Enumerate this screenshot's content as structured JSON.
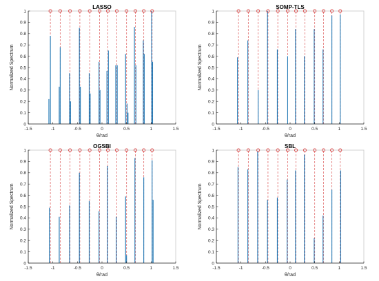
{
  "colors": {
    "spike": "#1f77b4",
    "true_line": "#e06b6b",
    "marker": "#d94040",
    "axis": "#262626",
    "frame": "#c8c8c8"
  },
  "chart_data": [
    {
      "type": "bar",
      "title": "LASSO",
      "xlabel": "θ/rad",
      "ylabel": "Normalized Spectrum",
      "xlim": [
        -1.5,
        1.5
      ],
      "ylim": [
        0,
        1
      ],
      "xticks": [
        -1.5,
        -1,
        -0.5,
        0,
        0.5,
        1,
        1.5
      ],
      "yticks": [
        0,
        0.1,
        0.2,
        0.3,
        0.4,
        0.5,
        0.6,
        0.7,
        0.8,
        0.9,
        1
      ],
      "true_doa": [
        -1.05,
        -0.85,
        -0.65,
        -0.45,
        -0.25,
        -0.05,
        0.12,
        0.3,
        0.5,
        0.68,
        0.85,
        1.02
      ],
      "spikes": {
        "x": [
          -1.08,
          -1.05,
          -0.87,
          -0.85,
          -0.66,
          -0.64,
          -0.46,
          -0.44,
          -0.26,
          -0.24,
          -0.06,
          -0.04,
          0.1,
          0.13,
          0.28,
          0.31,
          0.48,
          0.51,
          0.53,
          0.66,
          0.69,
          0.84,
          0.86,
          1.01,
          1.03
        ],
        "y": [
          0.22,
          0.78,
          0.33,
          0.68,
          0.45,
          0.2,
          0.85,
          0.33,
          0.45,
          0.27,
          0.55,
          0.3,
          0.47,
          0.65,
          0.52,
          0.52,
          0.62,
          0.18,
          0.1,
          0.86,
          0.52,
          0.74,
          0.62,
          1.0,
          0.55
        ]
      }
    },
    {
      "type": "bar",
      "title": "SOMP-TLS",
      "xlabel": "θ/rad",
      "ylabel": "Normalized Spectrum",
      "xlim": [
        -1.5,
        1.5
      ],
      "ylim": [
        0,
        1
      ],
      "xticks": [
        -1.5,
        -1,
        -0.5,
        0,
        0.5,
        1,
        1.5
      ],
      "yticks": [
        0,
        0.1,
        0.2,
        0.3,
        0.4,
        0.5,
        0.6,
        0.7,
        0.8,
        0.9,
        1
      ],
      "true_doa": [
        -1.05,
        -0.85,
        -0.65,
        -0.45,
        -0.25,
        -0.05,
        0.12,
        0.3,
        0.5,
        0.68,
        0.85,
        1.02
      ],
      "spikes": {
        "x": [
          -1.07,
          -0.86,
          -0.65,
          -0.46,
          -0.26,
          -0.05,
          0.11,
          0.29,
          0.49,
          0.67,
          0.85,
          1.02
        ],
        "y": [
          0.59,
          0.74,
          0.3,
          1.0,
          0.66,
          0.6,
          0.84,
          0.6,
          0.84,
          0.66,
          0.96,
          0.97
        ]
      }
    },
    {
      "type": "bar",
      "title": "OGSBI",
      "xlabel": "θ/rad",
      "ylabel": "Normalized Spectrum",
      "xlim": [
        -1.5,
        1.5
      ],
      "ylim": [
        0,
        1
      ],
      "xticks": [
        -1.5,
        -1,
        -0.5,
        0,
        0.5,
        1,
        1.5
      ],
      "yticks": [
        0,
        0.1,
        0.2,
        0.3,
        0.4,
        0.5,
        0.6,
        0.7,
        0.8,
        0.9,
        1
      ],
      "true_doa": [
        -1.05,
        -0.85,
        -0.65,
        -0.45,
        -0.25,
        -0.05,
        0.12,
        0.3,
        0.5,
        0.68,
        0.85,
        1.02
      ],
      "spikes": {
        "x": [
          -1.07,
          -0.87,
          -0.66,
          -0.46,
          -0.26,
          -0.06,
          0.11,
          0.29,
          0.48,
          0.5,
          0.67,
          0.85,
          1.02,
          1.04
        ],
        "y": [
          0.49,
          0.41,
          0.51,
          0.8,
          0.55,
          0.46,
          0.86,
          0.41,
          0.59,
          0.07,
          0.93,
          0.76,
          0.91,
          0.56
        ]
      }
    },
    {
      "type": "bar",
      "title": "SBL",
      "xlabel": "θ/rad",
      "ylabel": "Normalized Spectrum",
      "xlim": [
        -1.5,
        1.5
      ],
      "ylim": [
        0,
        1
      ],
      "xticks": [
        -1.5,
        -1,
        -0.5,
        0,
        0.5,
        1,
        1.5
      ],
      "yticks": [
        0,
        0.1,
        0.2,
        0.3,
        0.4,
        0.5,
        0.6,
        0.7,
        0.8,
        0.9,
        1
      ],
      "true_doa": [
        -1.05,
        -0.85,
        -0.65,
        -0.45,
        -0.25,
        -0.05,
        0.12,
        0.3,
        0.5,
        0.68,
        0.85,
        1.02
      ],
      "spikes": {
        "x": [
          -1.06,
          -0.86,
          -0.66,
          -0.46,
          -0.26,
          -0.06,
          0.11,
          0.29,
          0.49,
          0.67,
          0.85,
          1.03
        ],
        "y": [
          0.85,
          0.83,
          0.99,
          0.56,
          0.58,
          0.74,
          0.82,
          0.96,
          0.22,
          0.42,
          0.65,
          0.82
        ]
      }
    }
  ]
}
